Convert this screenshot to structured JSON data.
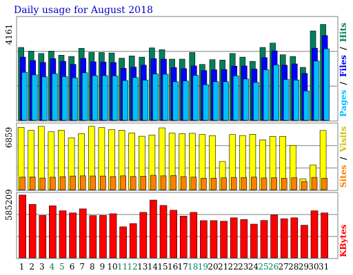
{
  "title": "Daily usage for August 2018",
  "colors": {
    "hits": "#00805c",
    "files": "#0000ff",
    "pages": "#00c0ff",
    "visits": "#ffff00",
    "sites": "#ff8000",
    "kbytes": "#ff0000",
    "weekend_day": "#007f5f",
    "weekday_day": "#000000",
    "title": "#0000cc"
  },
  "panels": {
    "top": {
      "ymax_label": "4161",
      "legend": [
        "Pages",
        "/",
        "Files",
        "/",
        "Hits"
      ]
    },
    "middle": {
      "ymax_label": "6859",
      "legend": [
        "Sites",
        "/",
        "Visits"
      ]
    },
    "bottom": {
      "ymax_label": "585209",
      "legend": [
        "KBytes"
      ]
    }
  },
  "chart_data": [
    {
      "type": "bar",
      "title": "Daily usage for August 2018",
      "categories": [
        "1",
        "2",
        "3",
        "4",
        "5",
        "6",
        "7",
        "8",
        "9",
        "10",
        "11",
        "12",
        "13",
        "14",
        "15",
        "16",
        "17",
        "18",
        "19",
        "20",
        "21",
        "22",
        "23",
        "24",
        "25",
        "26",
        "27",
        "28",
        "29",
        "30",
        "31"
      ],
      "weekend_days": [
        "4",
        "5",
        "11",
        "12",
        "18",
        "19",
        "25",
        "26"
      ],
      "ylim": [
        0,
        4161
      ],
      "series": [
        {
          "name": "Hits",
          "values": [
            3000,
            2850,
            2750,
            2850,
            2680,
            2630,
            2960,
            2800,
            2790,
            2770,
            2560,
            2650,
            2600,
            2980,
            2910,
            2520,
            2520,
            2790,
            2300,
            2500,
            2480,
            2750,
            2600,
            2430,
            3000,
            3180,
            2700,
            2630,
            2180,
            3680,
            3950
          ]
        },
        {
          "name": "Files",
          "values": [
            2600,
            2460,
            2380,
            2540,
            2430,
            2300,
            2550,
            2410,
            2400,
            2380,
            2140,
            2190,
            2270,
            2540,
            2520,
            2170,
            2130,
            2240,
            2050,
            2080,
            2090,
            2230,
            2240,
            2110,
            2580,
            2860,
            2270,
            2320,
            1930,
            2970,
            3490
          ]
        },
        {
          "name": "Pages",
          "values": [
            1980,
            1870,
            1790,
            1920,
            1800,
            1750,
            1960,
            1840,
            1840,
            1830,
            1640,
            1760,
            1660,
            1910,
            1900,
            1590,
            1620,
            1850,
            1470,
            1590,
            1590,
            1830,
            1700,
            1560,
            2080,
            2280,
            1680,
            1660,
            1210,
            2440,
            2940
          ]
        }
      ]
    },
    {
      "type": "bar",
      "ylim": [
        0,
        6859
      ],
      "series": [
        {
          "name": "Visits",
          "values": [
            6840,
            6510,
            6950,
            6360,
            6530,
            5700,
            6150,
            6950,
            6820,
            6600,
            6530,
            6220,
            5870,
            5990,
            6780,
            6200,
            6160,
            6190,
            6060,
            5940,
            3100,
            6050,
            5950,
            6080,
            5480,
            5850,
            5860,
            4870,
            1200,
            2710,
            6500
          ]
        },
        {
          "name": "Sites",
          "values": [
            1380,
            1400,
            1280,
            1370,
            1430,
            1500,
            1520,
            1510,
            1500,
            1440,
            1520,
            1450,
            1480,
            1580,
            1520,
            1570,
            1440,
            1380,
            1270,
            1270,
            1310,
            1350,
            1340,
            1380,
            1290,
            1320,
            1260,
            1310,
            900,
            1350,
            1270
          ]
        }
      ]
    },
    {
      "type": "bar",
      "ylim": [
        0,
        585209
      ],
      "series": [
        {
          "name": "KBytes",
          "values": [
            587000,
            500000,
            396000,
            487000,
            440000,
            420000,
            458000,
            395000,
            396000,
            412000,
            290000,
            320000,
            425000,
            540000,
            490000,
            445000,
            390000,
            425000,
            348000,
            348000,
            342000,
            374000,
            358000,
            315000,
            349000,
            400000,
            365000,
            374000,
            305000,
            440000,
            420000
          ]
        }
      ]
    }
  ]
}
